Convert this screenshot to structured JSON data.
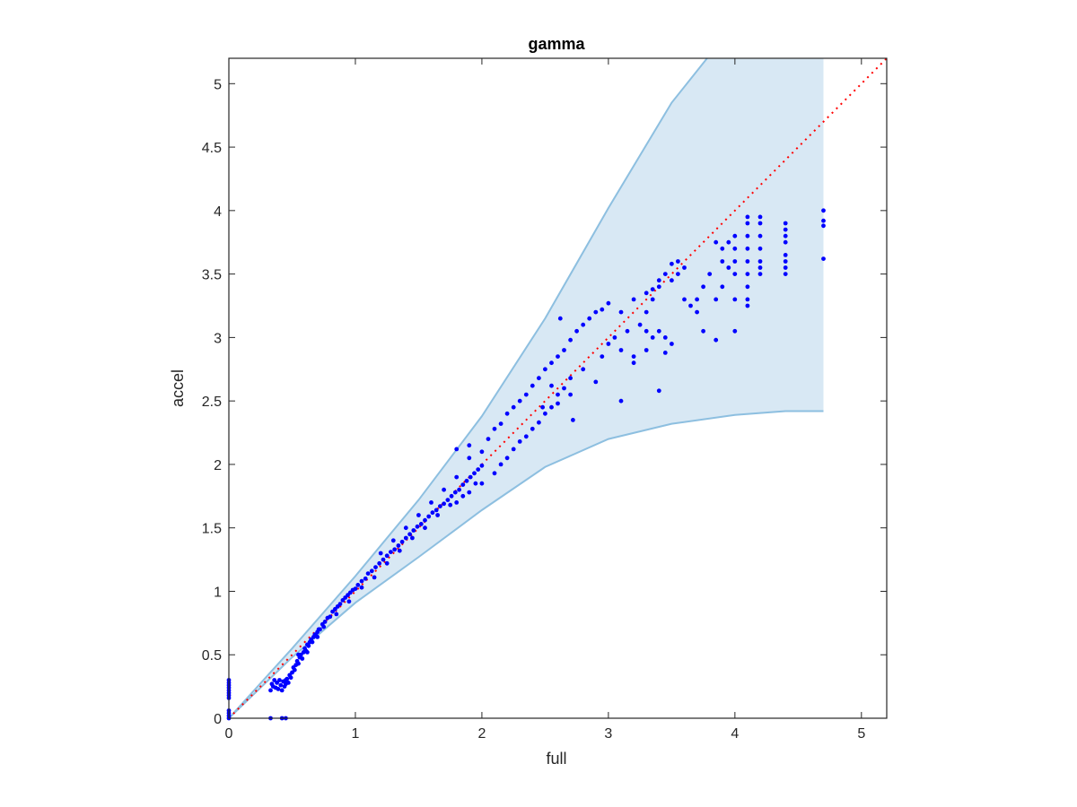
{
  "chart_data": {
    "type": "scatter",
    "title": "gamma",
    "xlabel": "full",
    "ylabel": "accel",
    "xlim": [
      0,
      5.2
    ],
    "ylim": [
      0,
      5.2
    ],
    "xticks": [
      0,
      1,
      2,
      3,
      4,
      5
    ],
    "xtick_labels": [
      "0",
      "1",
      "2",
      "3",
      "4",
      "5"
    ],
    "yticks": [
      0,
      0.5,
      1,
      1.5,
      2,
      2.5,
      3,
      3.5,
      4,
      4.5,
      5
    ],
    "ytick_labels": [
      "0",
      "0.5",
      "1",
      "1.5",
      "2",
      "2.5",
      "3",
      "3.5",
      "4",
      "4.5",
      "5"
    ],
    "grid": false,
    "box": true,
    "reference_line": {
      "from": [
        0,
        0
      ],
      "to": [
        5.2,
        5.2
      ],
      "style": "dotted",
      "color": "#ff0000"
    },
    "band": {
      "color": "#d8e8f4",
      "edge_color": "#8dbfe0",
      "upper": [
        [
          0,
          0
        ],
        [
          0.5,
          0.55
        ],
        [
          1,
          1.12
        ],
        [
          1.5,
          1.72
        ],
        [
          2,
          2.38
        ],
        [
          2.5,
          3.15
        ],
        [
          3,
          4.02
        ],
        [
          3.5,
          4.85
        ],
        [
          3.78,
          5.2
        ],
        [
          4.7,
          5.2
        ]
      ],
      "lower": [
        [
          4.7,
          2.42
        ],
        [
          4.4,
          2.42
        ],
        [
          4,
          2.39
        ],
        [
          3.5,
          2.32
        ],
        [
          3,
          2.2
        ],
        [
          2.5,
          1.98
        ],
        [
          2,
          1.64
        ],
        [
          1.5,
          1.27
        ],
        [
          1,
          0.91
        ],
        [
          0.5,
          0.48
        ],
        [
          0,
          0
        ]
      ]
    },
    "series": [
      {
        "color": "#0000ff",
        "points": [
          [
            0,
            0.3
          ],
          [
            0,
            0.28
          ],
          [
            0,
            0.26
          ],
          [
            0,
            0.24
          ],
          [
            0,
            0.22
          ],
          [
            0,
            0.2
          ],
          [
            0,
            0.18
          ],
          [
            0,
            0.16
          ],
          [
            0,
            0.06
          ],
          [
            0,
            0.04
          ],
          [
            0,
            0.02
          ],
          [
            0,
            0.0
          ],
          [
            0.33,
            0.0
          ],
          [
            0.42,
            0.0
          ],
          [
            0.45,
            0.0
          ],
          [
            0.33,
            0.22
          ],
          [
            0.34,
            0.27
          ],
          [
            0.35,
            0.25
          ],
          [
            0.36,
            0.3
          ],
          [
            0.37,
            0.24
          ],
          [
            0.38,
            0.28
          ],
          [
            0.39,
            0.23
          ],
          [
            0.4,
            0.3
          ],
          [
            0.41,
            0.26
          ],
          [
            0.42,
            0.22
          ],
          [
            0.43,
            0.29
          ],
          [
            0.44,
            0.25
          ],
          [
            0.45,
            0.27
          ],
          [
            0.46,
            0.31
          ],
          [
            0.47,
            0.28
          ],
          [
            0.48,
            0.34
          ],
          [
            0.49,
            0.32
          ],
          [
            0.5,
            0.36
          ],
          [
            0.51,
            0.4
          ],
          [
            0.52,
            0.38
          ],
          [
            0.53,
            0.42
          ],
          [
            0.54,
            0.45
          ],
          [
            0.55,
            0.43
          ],
          [
            0.56,
            0.48
          ],
          [
            0.57,
            0.5
          ],
          [
            0.58,
            0.47
          ],
          [
            0.59,
            0.52
          ],
          [
            0.6,
            0.55
          ],
          [
            0.61,
            0.53
          ],
          [
            0.62,
            0.58
          ],
          [
            0.63,
            0.57
          ],
          [
            0.64,
            0.6
          ],
          [
            0.65,
            0.62
          ],
          [
            0.66,
            0.6
          ],
          [
            0.67,
            0.64
          ],
          [
            0.68,
            0.66
          ],
          [
            0.69,
            0.65
          ],
          [
            0.7,
            0.68
          ],
          [
            0.71,
            0.7
          ],
          [
            0.72,
            0.7
          ],
          [
            0.74,
            0.74
          ],
          [
            0.76,
            0.76
          ],
          [
            0.78,
            0.79
          ],
          [
            0.8,
            0.8
          ],
          [
            0.82,
            0.84
          ],
          [
            0.84,
            0.86
          ],
          [
            0.86,
            0.88
          ],
          [
            0.88,
            0.9
          ],
          [
            0.9,
            0.93
          ],
          [
            0.92,
            0.95
          ],
          [
            0.94,
            0.97
          ],
          [
            0.96,
            0.99
          ],
          [
            0.98,
            1.01
          ],
          [
            1.0,
            1.02
          ],
          [
            1.02,
            1.05
          ],
          [
            1.05,
            1.08
          ],
          [
            1.08,
            1.1
          ],
          [
            1.1,
            1.14
          ],
          [
            1.13,
            1.16
          ],
          [
            1.16,
            1.19
          ],
          [
            1.19,
            1.22
          ],
          [
            1.22,
            1.25
          ],
          [
            1.25,
            1.28
          ],
          [
            1.28,
            1.31
          ],
          [
            1.31,
            1.33
          ],
          [
            1.34,
            1.36
          ],
          [
            1.37,
            1.39
          ],
          [
            1.4,
            1.42
          ],
          [
            1.43,
            1.45
          ],
          [
            1.46,
            1.48
          ],
          [
            1.49,
            1.51
          ],
          [
            1.52,
            1.53
          ],
          [
            1.55,
            1.56
          ],
          [
            1.58,
            1.59
          ],
          [
            1.61,
            1.62
          ],
          [
            1.64,
            1.64
          ],
          [
            1.67,
            1.67
          ],
          [
            1.7,
            1.69
          ],
          [
            1.73,
            1.72
          ],
          [
            1.76,
            1.75
          ],
          [
            1.79,
            1.78
          ],
          [
            1.82,
            1.8
          ],
          [
            1.85,
            1.84
          ],
          [
            1.88,
            1.87
          ],
          [
            1.91,
            1.9
          ],
          [
            1.94,
            1.93
          ],
          [
            1.97,
            1.96
          ],
          [
            2.0,
            1.99
          ],
          [
            0.45,
            0.3
          ],
          [
            0.55,
            0.5
          ],
          [
            0.62,
            0.52
          ],
          [
            0.7,
            0.64
          ],
          [
            0.75,
            0.72
          ],
          [
            0.85,
            0.82
          ],
          [
            0.95,
            0.92
          ],
          [
            1.05,
            1.03
          ],
          [
            1.15,
            1.11
          ],
          [
            1.25,
            1.22
          ],
          [
            1.35,
            1.32
          ],
          [
            1.45,
            1.42
          ],
          [
            1.55,
            1.5
          ],
          [
            1.65,
            1.6
          ],
          [
            1.75,
            1.68
          ],
          [
            1.85,
            1.75
          ],
          [
            1.95,
            1.85
          ],
          [
            1.2,
            1.3
          ],
          [
            1.3,
            1.4
          ],
          [
            1.4,
            1.5
          ],
          [
            1.5,
            1.6
          ],
          [
            1.6,
            1.7
          ],
          [
            1.7,
            1.8
          ],
          [
            1.8,
            1.9
          ],
          [
            1.9,
            2.05
          ],
          [
            2.0,
            2.1
          ],
          [
            1.8,
            2.12
          ],
          [
            1.9,
            2.15
          ],
          [
            1.8,
            1.7
          ],
          [
            1.9,
            1.78
          ],
          [
            2.0,
            1.85
          ],
          [
            2.1,
            1.93
          ],
          [
            2.15,
            2.0
          ],
          [
            2.2,
            2.05
          ],
          [
            2.25,
            2.12
          ],
          [
            2.3,
            2.18
          ],
          [
            2.35,
            2.22
          ],
          [
            2.4,
            2.28
          ],
          [
            2.45,
            2.33
          ],
          [
            2.5,
            2.4
          ],
          [
            2.55,
            2.45
          ],
          [
            2.6,
            2.55
          ],
          [
            2.65,
            2.6
          ],
          [
            2.7,
            2.68
          ],
          [
            2.05,
            2.2
          ],
          [
            2.1,
            2.28
          ],
          [
            2.15,
            2.32
          ],
          [
            2.2,
            2.4
          ],
          [
            2.25,
            2.45
          ],
          [
            2.3,
            2.5
          ],
          [
            2.35,
            2.55
          ],
          [
            2.4,
            2.62
          ],
          [
            2.45,
            2.68
          ],
          [
            2.5,
            2.75
          ],
          [
            2.55,
            2.8
          ],
          [
            2.6,
            2.85
          ],
          [
            2.65,
            2.9
          ],
          [
            2.7,
            2.98
          ],
          [
            2.75,
            3.05
          ],
          [
            2.8,
            3.1
          ],
          [
            2.85,
            3.15
          ],
          [
            2.9,
            3.2
          ],
          [
            2.95,
            3.22
          ],
          [
            3.0,
            3.27
          ],
          [
            2.62,
            3.15
          ],
          [
            2.55,
            2.62
          ],
          [
            2.48,
            2.45
          ],
          [
            2.72,
            2.35
          ],
          [
            2.6,
            2.48
          ],
          [
            2.7,
            2.55
          ],
          [
            2.8,
            2.75
          ],
          [
            2.9,
            2.65
          ],
          [
            2.95,
            2.85
          ],
          [
            3.0,
            2.95
          ],
          [
            3.05,
            3.0
          ],
          [
            3.1,
            2.9
          ],
          [
            3.15,
            3.05
          ],
          [
            3.2,
            2.85
          ],
          [
            3.25,
            3.1
          ],
          [
            3.3,
            3.2
          ],
          [
            3.35,
            3.3
          ],
          [
            3.4,
            3.4
          ],
          [
            3.45,
            3.5
          ],
          [
            3.5,
            3.45
          ],
          [
            3.55,
            3.5
          ],
          [
            3.6,
            3.55
          ],
          [
            3.1,
            3.2
          ],
          [
            3.2,
            3.3
          ],
          [
            3.3,
            3.35
          ],
          [
            3.35,
            3.38
          ],
          [
            3.4,
            3.45
          ],
          [
            3.5,
            3.58
          ],
          [
            3.55,
            3.6
          ],
          [
            3.1,
            2.5
          ],
          [
            3.4,
            2.58
          ],
          [
            3.2,
            2.8
          ],
          [
            3.3,
            2.9
          ],
          [
            3.35,
            3.0
          ],
          [
            3.4,
            3.05
          ],
          [
            3.45,
            3.0
          ],
          [
            3.5,
            2.95
          ],
          [
            3.45,
            2.88
          ],
          [
            3.3,
            3.05
          ],
          [
            3.6,
            3.3
          ],
          [
            3.65,
            3.25
          ],
          [
            3.7,
            3.3
          ],
          [
            3.75,
            3.4
          ],
          [
            3.8,
            3.5
          ],
          [
            3.85,
            3.3
          ],
          [
            3.9,
            3.4
          ],
          [
            3.95,
            3.55
          ],
          [
            3.85,
            2.98
          ],
          [
            3.75,
            3.05
          ],
          [
            3.7,
            3.2
          ],
          [
            3.9,
            3.6
          ],
          [
            3.9,
            3.7
          ],
          [
            3.95,
            3.75
          ],
          [
            4.0,
            3.6
          ],
          [
            4.0,
            3.7
          ],
          [
            4.0,
            3.8
          ],
          [
            4.0,
            3.3
          ],
          [
            4.0,
            3.5
          ],
          [
            4.0,
            3.05
          ],
          [
            3.85,
            3.75
          ],
          [
            4.1,
            3.25
          ],
          [
            4.1,
            3.3
          ],
          [
            4.1,
            3.4
          ],
          [
            4.1,
            3.5
          ],
          [
            4.1,
            3.6
          ],
          [
            4.1,
            3.7
          ],
          [
            4.1,
            3.8
          ],
          [
            4.1,
            3.9
          ],
          [
            4.1,
            3.95
          ],
          [
            4.2,
            3.6
          ],
          [
            4.2,
            3.55
          ],
          [
            4.2,
            3.7
          ],
          [
            4.2,
            3.8
          ],
          [
            4.2,
            3.9
          ],
          [
            4.2,
            3.95
          ],
          [
            4.2,
            3.5
          ],
          [
            4.4,
            3.5
          ],
          [
            4.4,
            3.55
          ],
          [
            4.4,
            3.6
          ],
          [
            4.4,
            3.65
          ],
          [
            4.4,
            3.75
          ],
          [
            4.4,
            3.8
          ],
          [
            4.4,
            3.85
          ],
          [
            4.4,
            3.9
          ],
          [
            4.7,
            3.62
          ],
          [
            4.7,
            3.88
          ],
          [
            4.7,
            3.92
          ],
          [
            4.7,
            4.0
          ]
        ]
      }
    ]
  }
}
